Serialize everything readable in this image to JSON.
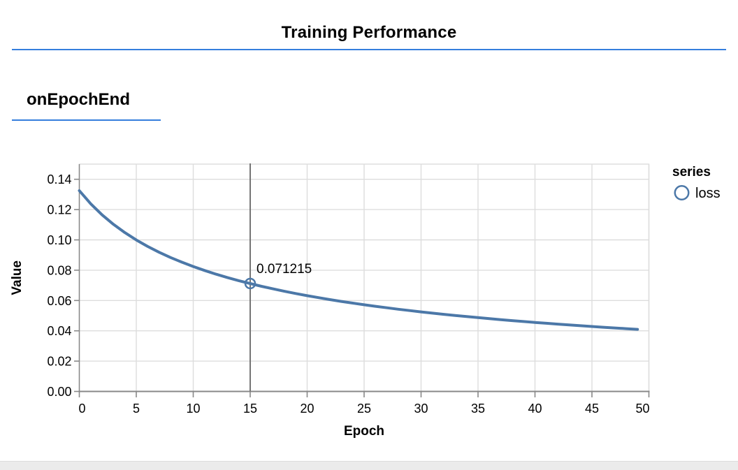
{
  "header": {
    "title": "Training Performance"
  },
  "section": {
    "title": "onEpochEnd"
  },
  "colors": {
    "accent_blue": "#357edd",
    "series_blue": "#4c78a8",
    "grid": "#dddddd",
    "axis": "#888888",
    "hover_rule": "#757575",
    "text": "#000000",
    "page_strip": "#ebebeb"
  },
  "chart_data": {
    "type": "line",
    "title": "",
    "xlabel": "Epoch",
    "ylabel": "Value",
    "x_domain": [
      0,
      50
    ],
    "y_domain": [
      0,
      0.15
    ],
    "grid": true,
    "x_ticks": [
      0,
      5,
      10,
      15,
      20,
      25,
      30,
      35,
      40,
      45,
      50
    ],
    "x_tick_labels": [
      "0",
      "5",
      "10",
      "15",
      "20",
      "25",
      "30",
      "35",
      "40",
      "45",
      "50"
    ],
    "y_ticks": [
      0,
      0.02,
      0.04,
      0.06,
      0.08,
      0.1,
      0.12,
      0.14
    ],
    "y_tick_labels": [
      "0.00",
      "0.02",
      "0.04",
      "0.06",
      "0.08",
      "0.10",
      "0.12",
      "0.14"
    ],
    "legend": {
      "title": "series",
      "position": "right",
      "items": [
        {
          "label": "loss",
          "marker": "circle",
          "color": "#4c78a8"
        }
      ]
    },
    "series": [
      {
        "name": "loss",
        "color": "#4c78a8",
        "points": [
          [
            0,
            0.13247
          ],
          [
            1,
            0.12382
          ],
          [
            2,
            0.11651
          ],
          [
            3,
            0.11023
          ],
          [
            4,
            0.10477
          ],
          [
            5,
            0.09996
          ],
          [
            6,
            0.09569
          ],
          [
            7,
            0.09186
          ],
          [
            8,
            0.08841
          ],
          [
            9,
            0.08528
          ],
          [
            10,
            0.08242
          ],
          [
            11,
            0.0798
          ],
          [
            12,
            0.07739
          ],
          [
            13,
            0.07516
          ],
          [
            14,
            0.07309
          ],
          [
            15,
            0.071215
          ],
          [
            16,
            0.06936
          ],
          [
            17,
            0.06768
          ],
          [
            18,
            0.06609
          ],
          [
            19,
            0.0646
          ],
          [
            20,
            0.0632
          ],
          [
            21,
            0.06187
          ],
          [
            22,
            0.06061
          ],
          [
            23,
            0.05942
          ],
          [
            24,
            0.05828
          ],
          [
            25,
            0.0572
          ],
          [
            26,
            0.05618
          ],
          [
            27,
            0.0552
          ],
          [
            28,
            0.05426
          ],
          [
            29,
            0.05336
          ],
          [
            30,
            0.05251
          ],
          [
            31,
            0.05168
          ],
          [
            32,
            0.05089
          ],
          [
            33,
            0.05013
          ],
          [
            34,
            0.0494
          ],
          [
            35,
            0.04869
          ],
          [
            36,
            0.04801
          ],
          [
            37,
            0.04736
          ],
          [
            38,
            0.04673
          ],
          [
            39,
            0.04612
          ],
          [
            40,
            0.04553
          ],
          [
            41,
            0.04496
          ],
          [
            42,
            0.04441
          ],
          [
            43,
            0.04387
          ],
          [
            44,
            0.04335
          ],
          [
            45,
            0.04285
          ],
          [
            46,
            0.04237
          ],
          [
            47,
            0.04189
          ],
          [
            48,
            0.04143
          ],
          [
            49,
            0.04099
          ]
        ]
      }
    ],
    "hover": {
      "x": 15,
      "y": 0.071215,
      "label": "0.071215"
    }
  }
}
